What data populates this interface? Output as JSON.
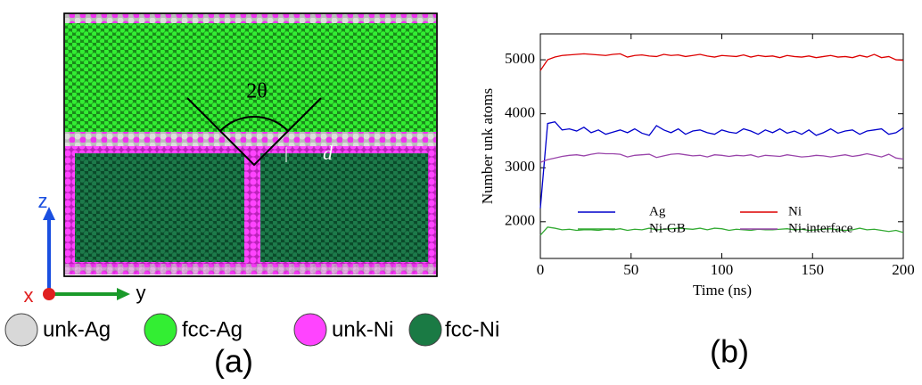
{
  "figure_a": {
    "angle_label": "2θ",
    "distance_label": "d",
    "axes": {
      "z": "z",
      "x": "x",
      "y": "y"
    },
    "legend": [
      "unk-Ag",
      "fcc-Ag",
      "unk-Ni",
      "fcc-Ni"
    ],
    "panel_label": "(a)"
  },
  "panel_b_label": "(b)",
  "chart_data": {
    "type": "line",
    "x_label": "Time (ns)",
    "y_label": "Number unk atoms",
    "x": [
      0,
      4,
      8,
      12,
      16,
      20,
      24,
      28,
      32,
      36,
      40,
      44,
      48,
      52,
      56,
      60,
      64,
      68,
      72,
      76,
      80,
      84,
      88,
      92,
      96,
      100,
      104,
      108,
      112,
      116,
      120,
      124,
      128,
      132,
      136,
      140,
      144,
      148,
      152,
      156,
      160,
      164,
      168,
      172,
      176,
      180,
      184,
      188,
      192,
      196,
      200
    ],
    "series": [
      {
        "name": "Ag",
        "color": "#0000cc",
        "values": [
          2250,
          3820,
          3850,
          3700,
          3720,
          3680,
          3750,
          3650,
          3700,
          3620,
          3660,
          3700,
          3650,
          3720,
          3640,
          3600,
          3780,
          3700,
          3650,
          3720,
          3620,
          3680,
          3700,
          3650,
          3620,
          3700,
          3660,
          3640,
          3720,
          3680,
          3620,
          3700,
          3650,
          3720,
          3640,
          3680,
          3620,
          3700,
          3600,
          3650,
          3720,
          3640,
          3680,
          3700,
          3620,
          3680,
          3700,
          3720,
          3620,
          3650,
          3740
        ]
      },
      {
        "name": "Ni",
        "color": "#dd0000",
        "values": [
          4800,
          5000,
          5050,
          5080,
          5090,
          5100,
          5110,
          5100,
          5090,
          5080,
          5100,
          5110,
          5050,
          5080,
          5090,
          5070,
          5060,
          5100,
          5080,
          5090,
          5060,
          5080,
          5100,
          5070,
          5050,
          5080,
          5070,
          5060,
          5090,
          5050,
          5080,
          5060,
          5070,
          5040,
          5080,
          5060,
          5050,
          5070,
          5040,
          5060,
          5080,
          5050,
          5060,
          5040,
          5080,
          5050,
          5100,
          5040,
          5060,
          5000,
          4990
        ]
      },
      {
        "name": "Ni-GB",
        "color": "#33aa33",
        "values": [
          1750,
          1900,
          1880,
          1850,
          1860,
          1840,
          1850,
          1850,
          1840,
          1860,
          1850,
          1870,
          1840,
          1860,
          1850,
          1880,
          1850,
          1860,
          1870,
          1880,
          1870,
          1860,
          1880,
          1850,
          1880,
          1870,
          1840,
          1860,
          1850,
          1840,
          1860,
          1850,
          1850,
          1860,
          1870,
          1850,
          1860,
          1840,
          1850,
          1860,
          1870,
          1850,
          1840,
          1850,
          1880,
          1850,
          1860,
          1840,
          1820,
          1840,
          1800
        ]
      },
      {
        "name": "Ni-interface",
        "color": "#9944aa",
        "values": [
          3100,
          3150,
          3180,
          3210,
          3230,
          3240,
          3220,
          3250,
          3270,
          3260,
          3260,
          3250,
          3200,
          3230,
          3240,
          3250,
          3190,
          3220,
          3250,
          3260,
          3240,
          3220,
          3230,
          3200,
          3240,
          3230,
          3210,
          3230,
          3220,
          3240,
          3200,
          3230,
          3220,
          3210,
          3240,
          3220,
          3200,
          3210,
          3230,
          3220,
          3200,
          3220,
          3240,
          3210,
          3230,
          3260,
          3230,
          3200,
          3250,
          3180,
          3160
        ]
      }
    ],
    "xlim": [
      0,
      200
    ],
    "ylim": [
      1320,
      5480
    ],
    "xticks": [
      0,
      50,
      100,
      150,
      200
    ],
    "yticks": [
      2000,
      3000,
      4000,
      5000
    ]
  }
}
